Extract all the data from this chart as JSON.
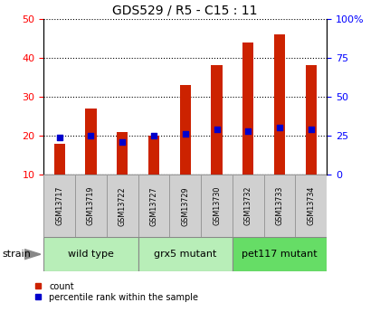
{
  "title": "GDS529 / R5 - C15 : 11",
  "samples": [
    "GSM13717",
    "GSM13719",
    "GSM13722",
    "GSM13727",
    "GSM13729",
    "GSM13730",
    "GSM13732",
    "GSM13733",
    "GSM13734"
  ],
  "counts": [
    18,
    27,
    21,
    20,
    33,
    38,
    44,
    46,
    38
  ],
  "percentile_ranks": [
    24,
    25,
    21,
    25,
    26,
    29,
    28,
    30,
    29
  ],
  "groups": [
    {
      "label": "wild type",
      "indices": [
        0,
        1,
        2
      ],
      "color": "#b8eeb8"
    },
    {
      "label": "grx5 mutant",
      "indices": [
        3,
        4,
        5
      ],
      "color": "#b8eeb8"
    },
    {
      "label": "pet117 mutant",
      "indices": [
        6,
        7,
        8
      ],
      "color": "#66dd66"
    }
  ],
  "bar_color": "#cc2200",
  "dot_color": "#0000cc",
  "ylim_left": [
    10,
    50
  ],
  "ylim_right": [
    0,
    100
  ],
  "yticks_left": [
    10,
    20,
    30,
    40,
    50
  ],
  "ytick_labels_right": [
    "0",
    "25",
    "50",
    "75",
    "100%"
  ],
  "yticks_right": [
    0,
    25,
    50,
    75,
    100
  ],
  "background_color": "#ffffff",
  "bar_width": 0.35,
  "sample_bg": "#d0d0d0",
  "strain_label": "strain",
  "legend_count": "count",
  "legend_percentile": "percentile rank within the sample"
}
